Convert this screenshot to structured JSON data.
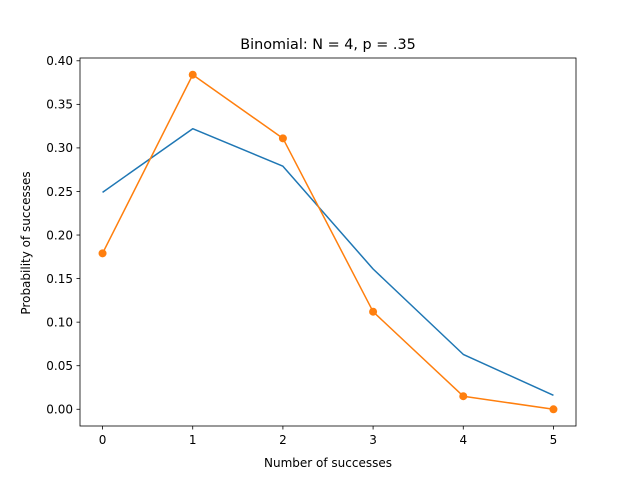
{
  "chart_data": {
    "type": "line",
    "title": "Binomial: N = 4, p = .35",
    "xlabel": "Number of successes",
    "ylabel": "Probability of successes",
    "xlim": [
      -0.25,
      5.25
    ],
    "ylim": [
      -0.0192,
      0.4032
    ],
    "x": [
      0,
      1,
      2,
      3,
      4,
      5
    ],
    "x_ticks": [
      0,
      1,
      2,
      3,
      4,
      5
    ],
    "x_tick_labels": [
      "0",
      "1",
      "2",
      "3",
      "4",
      "5"
    ],
    "y_ticks": [
      0,
      0.05,
      0.1,
      0.15,
      0.2,
      0.25,
      0.3,
      0.35,
      0.4
    ],
    "y_tick_labels": [
      "0.00",
      "0.05",
      "0.10",
      "0.15",
      "0.20",
      "0.25",
      "0.30",
      "0.35",
      "0.40"
    ],
    "grid": false,
    "legend": "none",
    "series": [
      {
        "color": "#1f77b4",
        "marker": "none",
        "values": [
          0.249,
          0.322,
          0.279,
          0.161,
          0.063,
          0.016
        ]
      },
      {
        "color": "#ff7f0e",
        "marker": "circle",
        "values": [
          0.179,
          0.384,
          0.311,
          0.112,
          0.015,
          0.0
        ]
      }
    ]
  }
}
